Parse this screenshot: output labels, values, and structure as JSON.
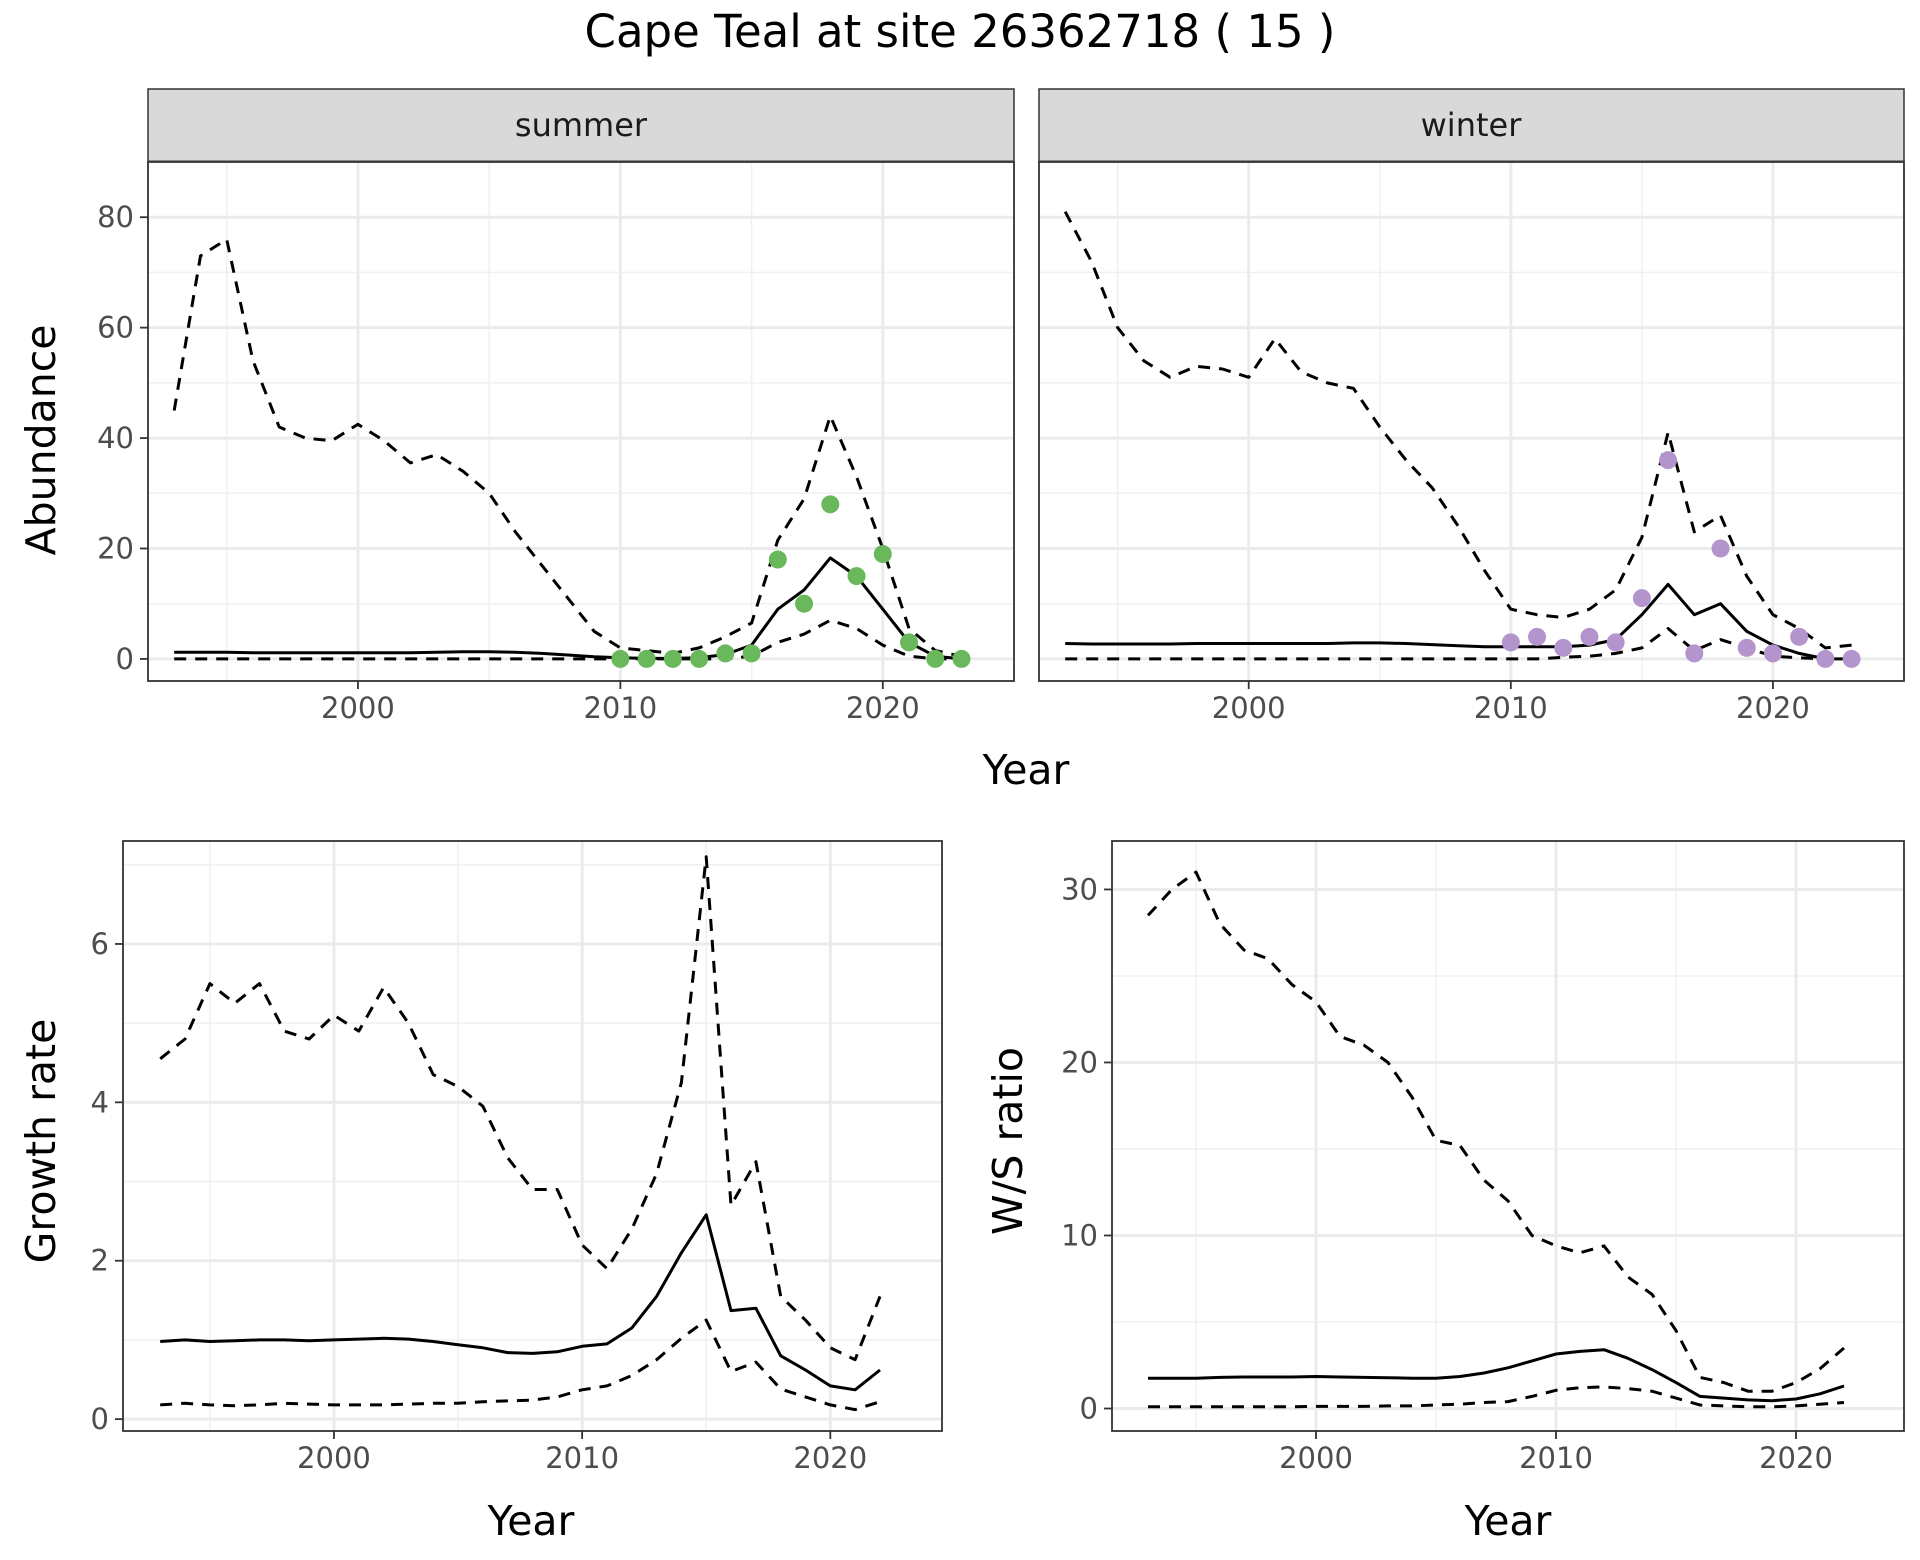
{
  "title": "Cape Teal at site 26362718 ( 15 )",
  "x_axis_label": "Year",
  "chart_data": [
    {
      "id": "summer",
      "type": "line",
      "facet_label": "summer",
      "xlabel": "",
      "ylabel": "Abundance",
      "xlim": [
        1992,
        2025
      ],
      "ylim": [
        -4,
        90
      ],
      "xticks": [
        2000,
        2010,
        2020
      ],
      "yticks": [
        0,
        20,
        40,
        60,
        80
      ],
      "grid": true,
      "point_color": "#6ab85c",
      "x": [
        1993,
        1994,
        1995,
        1996,
        1997,
        1998,
        1999,
        2000,
        2001,
        2002,
        2003,
        2004,
        2005,
        2006,
        2007,
        2008,
        2009,
        2010,
        2011,
        2012,
        2013,
        2014,
        2015,
        2016,
        2017,
        2018,
        2019,
        2020,
        2021,
        2022,
        2023
      ],
      "series": [
        {
          "style": "solid",
          "values": [
            1.2,
            1.2,
            1.2,
            1.1,
            1.1,
            1.1,
            1.1,
            1.1,
            1.1,
            1.1,
            1.2,
            1.3,
            1.3,
            1.2,
            1.0,
            0.7,
            0.4,
            0.2,
            0.1,
            0.1,
            0.2,
            0.8,
            2.5,
            9.0,
            12.5,
            18.3,
            15.0,
            9.0,
            3.0,
            0.5,
            0.0
          ]
        },
        {
          "style": "dashed",
          "values": [
            45,
            73,
            76,
            54,
            42,
            40,
            39.5,
            42.5,
            39.5,
            35.5,
            37,
            34,
            30,
            23,
            17,
            11,
            5,
            2.0,
            1.5,
            1.0,
            2.0,
            4.0,
            6.5,
            21.5,
            29,
            44,
            33,
            20,
            5.5,
            1.5,
            0.5
          ]
        },
        {
          "style": "dashed",
          "values": [
            0,
            0,
            0,
            0,
            0,
            0,
            0,
            0,
            0,
            0,
            0,
            0,
            0,
            0,
            0,
            0,
            0,
            0,
            0,
            0,
            0,
            0,
            0.5,
            3.0,
            4.5,
            7.0,
            5.5,
            2.5,
            0.5,
            0,
            0
          ]
        }
      ],
      "points": {
        "x": [
          2010,
          2011,
          2012,
          2013,
          2014,
          2015,
          2016,
          2017,
          2018,
          2019,
          2020,
          2021,
          2022,
          2023
        ],
        "y": [
          0,
          0,
          0,
          0,
          1,
          1,
          18,
          10,
          28,
          15,
          19,
          3,
          0,
          0
        ]
      }
    },
    {
      "id": "winter",
      "type": "line",
      "facet_label": "winter",
      "xlabel": "",
      "ylabel": "",
      "xlim": [
        1992,
        2025
      ],
      "ylim": [
        -4,
        90
      ],
      "xticks": [
        2000,
        2010,
        2020
      ],
      "yticks": [
        0,
        20,
        40,
        60,
        80
      ],
      "grid": true,
      "point_color": "#b394cc",
      "x": [
        1993,
        1994,
        1995,
        1996,
        1997,
        1998,
        1999,
        2000,
        2001,
        2002,
        2003,
        2004,
        2005,
        2006,
        2007,
        2008,
        2009,
        2010,
        2011,
        2012,
        2013,
        2014,
        2015,
        2016,
        2017,
        2018,
        2019,
        2020,
        2021,
        2022,
        2023
      ],
      "series": [
        {
          "style": "solid",
          "values": [
            2.8,
            2.7,
            2.7,
            2.7,
            2.7,
            2.8,
            2.8,
            2.8,
            2.8,
            2.8,
            2.8,
            2.9,
            2.9,
            2.8,
            2.6,
            2.4,
            2.2,
            2.2,
            2.2,
            2.2,
            2.5,
            3.5,
            8.0,
            13.5,
            8.0,
            10.0,
            5.0,
            2.5,
            1.0,
            0.0,
            0.0
          ]
        },
        {
          "style": "dashed",
          "values": [
            81,
            72,
            60,
            54,
            51,
            53,
            52.5,
            51,
            58,
            52,
            50,
            49,
            42,
            36,
            31,
            24,
            16,
            9.0,
            8.0,
            7.5,
            9.0,
            12.5,
            22,
            41,
            23,
            26,
            15,
            8.0,
            5.5,
            2.0,
            2.5
          ]
        },
        {
          "style": "dashed",
          "values": [
            0,
            0,
            0,
            0,
            0,
            0,
            0,
            0,
            0,
            0,
            0,
            0,
            0,
            0,
            0,
            0,
            0,
            0,
            0,
            0.3,
            0.5,
            1.0,
            2.0,
            5.5,
            1.5,
            3.5,
            2.0,
            0.5,
            0.2,
            0,
            0
          ]
        }
      ],
      "points": {
        "x": [
          2010,
          2011,
          2012,
          2013,
          2014,
          2015,
          2016,
          2017,
          2018,
          2019,
          2020,
          2021,
          2022,
          2023
        ],
        "y": [
          3,
          4,
          2,
          4,
          3,
          11,
          36,
          1,
          20,
          2,
          1,
          4,
          0,
          0
        ]
      }
    },
    {
      "id": "growth",
      "type": "line",
      "xlabel": "Year",
      "ylabel": "Growth rate",
      "xlim": [
        1991.5,
        2024.5
      ],
      "ylim": [
        -0.15,
        7.3
      ],
      "xticks": [
        2000,
        2010,
        2020
      ],
      "yticks": [
        0,
        2,
        4,
        6
      ],
      "grid": true,
      "x": [
        1993,
        1994,
        1995,
        1996,
        1997,
        1998,
        1999,
        2000,
        2001,
        2002,
        2003,
        2004,
        2005,
        2006,
        2007,
        2008,
        2009,
        2010,
        2011,
        2012,
        2013,
        2014,
        2015,
        2016,
        2017,
        2018,
        2019,
        2020,
        2021,
        2022
      ],
      "series": [
        {
          "style": "solid",
          "values": [
            0.98,
            1.0,
            0.98,
            0.99,
            1.0,
            1.0,
            0.99,
            1.0,
            1.01,
            1.02,
            1.01,
            0.98,
            0.94,
            0.9,
            0.84,
            0.83,
            0.85,
            0.92,
            0.95,
            1.15,
            1.55,
            2.1,
            2.58,
            1.37,
            1.4,
            0.8,
            0.62,
            0.42,
            0.37,
            0.62
          ]
        },
        {
          "style": "dashed",
          "values": [
            4.55,
            4.8,
            5.5,
            5.25,
            5.5,
            4.9,
            4.8,
            5.1,
            4.9,
            5.45,
            5.0,
            4.35,
            4.2,
            3.95,
            3.3,
            2.9,
            2.9,
            2.2,
            1.9,
            2.4,
            3.1,
            4.25,
            7.1,
            2.7,
            3.25,
            1.55,
            1.25,
            0.9,
            0.75,
            1.55
          ]
        },
        {
          "style": "dashed",
          "values": [
            0.18,
            0.2,
            0.18,
            0.17,
            0.18,
            0.2,
            0.19,
            0.18,
            0.18,
            0.18,
            0.19,
            0.2,
            0.2,
            0.22,
            0.23,
            0.24,
            0.28,
            0.37,
            0.42,
            0.55,
            0.75,
            1.02,
            1.25,
            0.6,
            0.72,
            0.38,
            0.28,
            0.18,
            0.12,
            0.22
          ]
        }
      ]
    },
    {
      "id": "ratio",
      "type": "line",
      "xlabel": "Year",
      "ylabel": "W/S ratio",
      "xlim": [
        1991.5,
        2024.5
      ],
      "ylim": [
        -1.3,
        32.8
      ],
      "xticks": [
        2000,
        2010,
        2020
      ],
      "yticks": [
        0,
        10,
        20,
        30
      ],
      "grid": true,
      "x": [
        1993,
        1994,
        1995,
        1996,
        1997,
        1998,
        1999,
        2000,
        2001,
        2002,
        2003,
        2004,
        2005,
        2006,
        2007,
        2008,
        2009,
        2010,
        2011,
        2012,
        2013,
        2014,
        2015,
        2016,
        2017,
        2018,
        2019,
        2020,
        2021,
        2022
      ],
      "series": [
        {
          "style": "solid",
          "values": [
            1.75,
            1.75,
            1.75,
            1.8,
            1.82,
            1.82,
            1.82,
            1.85,
            1.82,
            1.8,
            1.78,
            1.75,
            1.75,
            1.85,
            2.05,
            2.35,
            2.75,
            3.15,
            3.3,
            3.4,
            2.9,
            2.25,
            1.5,
            0.7,
            0.6,
            0.5,
            0.45,
            0.55,
            0.85,
            1.3
          ]
        },
        {
          "style": "dashed",
          "values": [
            28.5,
            30,
            31,
            28,
            26.5,
            26,
            24.5,
            23.5,
            21.5,
            21,
            20,
            18,
            15.5,
            15.2,
            13.2,
            12,
            10,
            9.4,
            9.0,
            9.4,
            7.6,
            6.6,
            4.5,
            1.8,
            1.5,
            1.0,
            1.0,
            1.5,
            2.3,
            3.5
          ]
        },
        {
          "style": "dashed",
          "values": [
            0.1,
            0.1,
            0.1,
            0.1,
            0.1,
            0.1,
            0.1,
            0.12,
            0.12,
            0.12,
            0.15,
            0.15,
            0.2,
            0.25,
            0.35,
            0.4,
            0.7,
            1.05,
            1.2,
            1.25,
            1.15,
            1.0,
            0.6,
            0.2,
            0.15,
            0.1,
            0.1,
            0.15,
            0.25,
            0.35
          ]
        }
      ]
    }
  ]
}
